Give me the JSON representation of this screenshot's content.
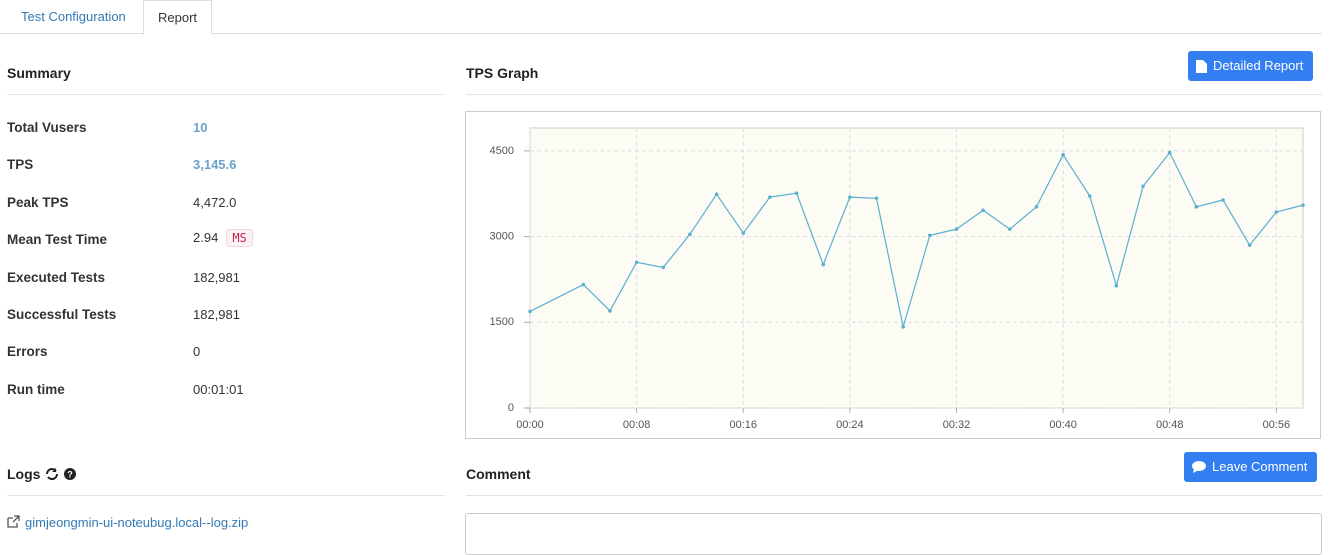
{
  "tabs": [
    "Test Configuration",
    "Report"
  ],
  "summary": {
    "title": "Summary",
    "rows": [
      {
        "label": "Total Vusers",
        "value": "10"
      },
      {
        "label": "TPS",
        "value": "3,145.6"
      },
      {
        "label": "Peak TPS",
        "value": "4,472.0"
      },
      {
        "label": "Mean Test Time",
        "value": "2.94",
        "unit": "MS"
      },
      {
        "label": "Executed Tests",
        "value": "182,981"
      },
      {
        "label": "Successful Tests",
        "value": "182,981"
      },
      {
        "label": "Errors",
        "value": "0"
      },
      {
        "label": "Run time",
        "value": "00:01:01"
      }
    ]
  },
  "logs": {
    "title": "Logs",
    "file": "gimjeongmin-ui-noteubug.local--log.zip"
  },
  "comment": {
    "title": "Comment",
    "button": "Leave Comment"
  },
  "detailed_report_button": "Detailed Report",
  "chart_data": {
    "type": "line",
    "title": "TPS Graph",
    "x": [
      0,
      4,
      6,
      8,
      10,
      12,
      14,
      16,
      18,
      20,
      22,
      24,
      26,
      28,
      30,
      32,
      34,
      36,
      38,
      40,
      42,
      44,
      46,
      48,
      50,
      52,
      54,
      56,
      58
    ],
    "series": [
      {
        "color": "#5ab0d0",
        "values": [
          1690,
          2160,
          1700,
          2550,
          2460,
          3040,
          3740,
          3060,
          3690,
          3760,
          2510,
          3690,
          3670,
          1420,
          3020,
          3130,
          3460,
          3130,
          3520,
          4430,
          3710,
          2140,
          3880,
          4470,
          3520,
          3640,
          2850,
          3430,
          3550
        ]
      }
    ],
    "xlim": [
      0,
      58
    ],
    "xticks": [
      {
        "value": 0,
        "label": "00:00"
      },
      {
        "value": 8,
        "label": "00:08"
      },
      {
        "value": 16,
        "label": "00:16"
      },
      {
        "value": 24,
        "label": "00:24"
      },
      {
        "value": 32,
        "label": "00:32"
      },
      {
        "value": 40,
        "label": "00:40"
      },
      {
        "value": 48,
        "label": "00:48"
      },
      {
        "value": 56,
        "label": "00:56"
      }
    ],
    "ylim": [
      0,
      4900
    ],
    "yticks": [
      0,
      1500,
      3000,
      4500
    ],
    "grid": true
  }
}
